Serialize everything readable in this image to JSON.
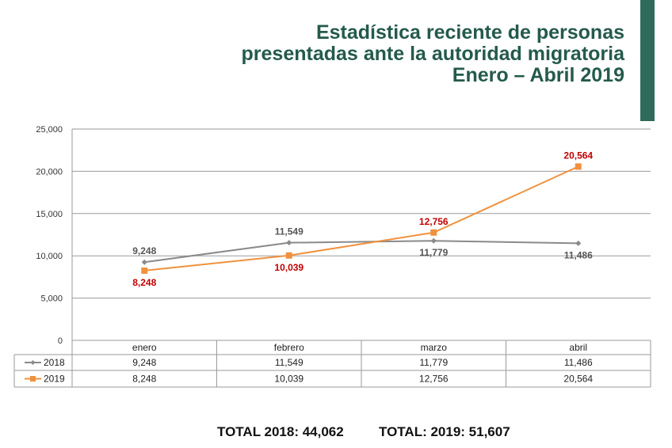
{
  "title": [
    "Estadística reciente de personas",
    "presentadas ante la autoridad migratoria",
    "Enero – Abril 2019"
  ],
  "chart_data": {
    "type": "line",
    "categories": [
      "enero",
      "febrero",
      "marzo",
      "abril"
    ],
    "series": [
      {
        "name": "2018",
        "values": [
          9248,
          11549,
          11779,
          11486
        ],
        "labels": [
          "9,248",
          "11,549",
          "11,779",
          "11,486"
        ],
        "color": "#8a8a8a",
        "label_color": "#555555",
        "marker": "diamond"
      },
      {
        "name": "2019",
        "values": [
          8248,
          10039,
          12756,
          20564
        ],
        "labels": [
          "8,248",
          "10,039",
          "12,756",
          "20,564"
        ],
        "color": "#f0913e",
        "label_color": "#c00000",
        "marker": "square"
      }
    ],
    "ylim": [
      0,
      25000
    ],
    "yticks": [
      0,
      5000,
      10000,
      15000,
      20000,
      25000
    ],
    "ytick_labels": [
      "0",
      "5,000",
      "10,000",
      "15,000",
      "20,000",
      "25,000"
    ],
    "grid": true,
    "data_table": true
  },
  "totals": {
    "t2018": "TOTAL 2018: 44,062",
    "t2019": "TOTAL: 2019: 51,607"
  },
  "colors": {
    "accent_bar": "#2f6b5b",
    "title": "#245a4c"
  }
}
